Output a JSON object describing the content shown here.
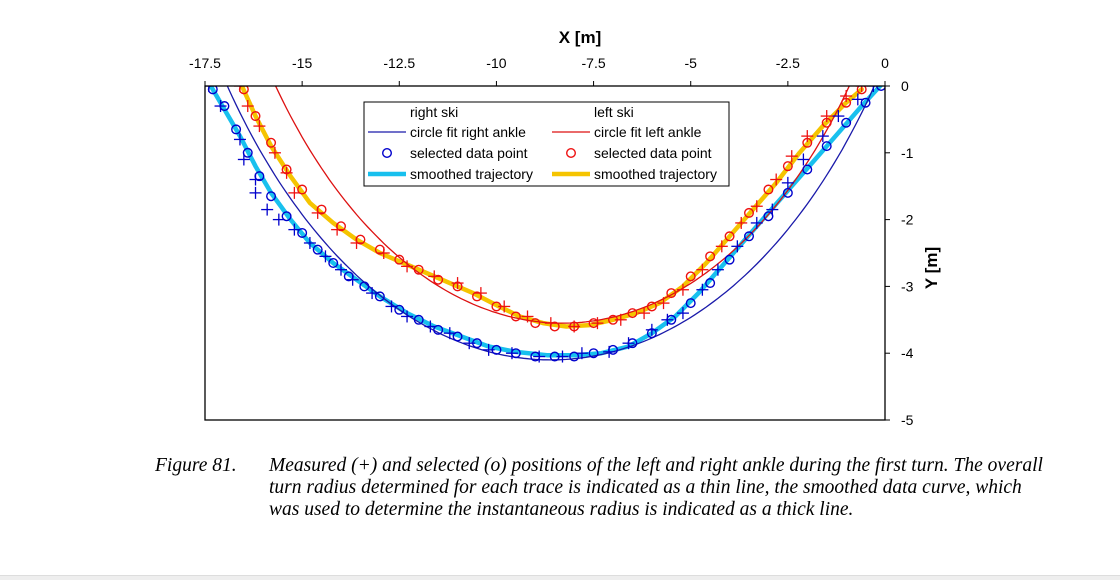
{
  "chart_data": {
    "type": "scatter",
    "title": "",
    "xlabel": "X [m]",
    "ylabel": "Y [m]",
    "xlim": [
      -17.5,
      0
    ],
    "ylim": [
      -5,
      0
    ],
    "x_ticks": [
      "-17.5",
      "-15",
      "-12.5",
      "-10",
      "-7.5",
      "-5",
      "-2.5",
      "0"
    ],
    "x_tick_values": [
      -17.5,
      -15,
      -12.5,
      -10,
      -7.5,
      -5,
      -2.5,
      0
    ],
    "y_ticks": [
      "0",
      "-1",
      "-2",
      "-3",
      "-4",
      "-5"
    ],
    "y_tick_values": [
      0,
      -1,
      -2,
      -3,
      -4,
      -5
    ],
    "grid": false,
    "x_axis_position": "top",
    "y_axis_position": "right",
    "legend_position": "top-center",
    "legend": {
      "right": {
        "header": "right ski",
        "fit": "circle fit right ankle",
        "selected": "selected data point",
        "smoothed": "smoothed trajectory"
      },
      "left": {
        "header": "left ski",
        "fit": "circle fit left ankle",
        "selected": "selected data point",
        "smoothed": "smoothed trajectory"
      }
    },
    "colors": {
      "right_marker": "#0000cc",
      "right_fit": "#1a1aaa",
      "right_smoothed": "#18c0ee",
      "left_marker": "#ee1111",
      "left_fit": "#dd1111",
      "left_smoothed": "#f5c400"
    },
    "series": [
      {
        "name": "right ski",
        "kind": "measured",
        "marker": "plus",
        "points": [
          [
            -17.4,
            0
          ],
          [
            -17.1,
            -0.3
          ],
          [
            -16.6,
            -0.8
          ],
          [
            -16.5,
            -1.1
          ],
          [
            -16.2,
            -1.4
          ],
          [
            -16.2,
            -1.6
          ],
          [
            -15.9,
            -1.85
          ],
          [
            -15.6,
            -2.0
          ],
          [
            -15.2,
            -2.15
          ],
          [
            -14.8,
            -2.35
          ],
          [
            -14.4,
            -2.55
          ],
          [
            -14.0,
            -2.75
          ],
          [
            -13.7,
            -2.9
          ],
          [
            -13.2,
            -3.1
          ],
          [
            -12.7,
            -3.3
          ],
          [
            -12.3,
            -3.45
          ],
          [
            -11.7,
            -3.6
          ],
          [
            -11.2,
            -3.7
          ],
          [
            -10.7,
            -3.85
          ],
          [
            -10.2,
            -3.95
          ],
          [
            -9.6,
            -4.0
          ],
          [
            -8.9,
            -4.05
          ],
          [
            -8.3,
            -4.05
          ],
          [
            -7.8,
            -4.0
          ],
          [
            -7.1,
            -3.98
          ],
          [
            -6.6,
            -3.85
          ],
          [
            -6.0,
            -3.65
          ],
          [
            -5.6,
            -3.5
          ],
          [
            -5.2,
            -3.4
          ],
          [
            -4.7,
            -3.05
          ],
          [
            -4.3,
            -2.75
          ],
          [
            -3.8,
            -2.4
          ],
          [
            -3.3,
            -2.05
          ],
          [
            -2.9,
            -1.85
          ],
          [
            -2.5,
            -1.45
          ],
          [
            -2.1,
            -1.1
          ],
          [
            -1.6,
            -0.75
          ],
          [
            -1.2,
            -0.45
          ],
          [
            -0.7,
            -0.2
          ],
          [
            -0.3,
            0
          ]
        ]
      },
      {
        "name": "right ski",
        "kind": "selected",
        "marker": "circle",
        "points": [
          [
            -17.3,
            -0.05
          ],
          [
            -17.0,
            -0.3
          ],
          [
            -16.7,
            -0.65
          ],
          [
            -16.4,
            -1.0
          ],
          [
            -16.1,
            -1.35
          ],
          [
            -15.8,
            -1.65
          ],
          [
            -15.4,
            -1.95
          ],
          [
            -15.0,
            -2.2
          ],
          [
            -14.6,
            -2.45
          ],
          [
            -14.2,
            -2.65
          ],
          [
            -13.8,
            -2.85
          ],
          [
            -13.4,
            -3.0
          ],
          [
            -13.0,
            -3.15
          ],
          [
            -12.5,
            -3.35
          ],
          [
            -12.0,
            -3.5
          ],
          [
            -11.5,
            -3.65
          ],
          [
            -11.0,
            -3.75
          ],
          [
            -10.5,
            -3.85
          ],
          [
            -10.0,
            -3.95
          ],
          [
            -9.5,
            -4.0
          ],
          [
            -9.0,
            -4.05
          ],
          [
            -8.5,
            -4.05
          ],
          [
            -8.0,
            -4.05
          ],
          [
            -7.5,
            -4.0
          ],
          [
            -7.0,
            -3.95
          ],
          [
            -6.5,
            -3.85
          ],
          [
            -6.0,
            -3.7
          ],
          [
            -5.5,
            -3.5
          ],
          [
            -5.0,
            -3.25
          ],
          [
            -4.5,
            -2.95
          ],
          [
            -4.0,
            -2.6
          ],
          [
            -3.5,
            -2.25
          ],
          [
            -3.0,
            -1.95
          ],
          [
            -2.5,
            -1.6
          ],
          [
            -2.0,
            -1.25
          ],
          [
            -1.5,
            -0.9
          ],
          [
            -1.0,
            -0.55
          ],
          [
            -0.5,
            -0.25
          ],
          [
            -0.1,
            0
          ]
        ]
      },
      {
        "name": "left ski",
        "kind": "measured",
        "marker": "plus",
        "points": [
          [
            -16.6,
            0
          ],
          [
            -16.4,
            -0.3
          ],
          [
            -16.1,
            -0.6
          ],
          [
            -15.7,
            -1.0
          ],
          [
            -15.4,
            -1.3
          ],
          [
            -15.2,
            -1.6
          ],
          [
            -14.6,
            -1.9
          ],
          [
            -14.1,
            -2.15
          ],
          [
            -13.6,
            -2.35
          ],
          [
            -12.9,
            -2.5
          ],
          [
            -12.3,
            -2.7
          ],
          [
            -11.6,
            -2.85
          ],
          [
            -11.0,
            -2.95
          ],
          [
            -10.4,
            -3.1
          ],
          [
            -9.8,
            -3.3
          ],
          [
            -9.2,
            -3.45
          ],
          [
            -8.6,
            -3.55
          ],
          [
            -8.0,
            -3.6
          ],
          [
            -7.4,
            -3.55
          ],
          [
            -6.8,
            -3.5
          ],
          [
            -6.2,
            -3.4
          ],
          [
            -5.7,
            -3.25
          ],
          [
            -5.2,
            -3.05
          ],
          [
            -4.7,
            -2.75
          ],
          [
            -4.2,
            -2.4
          ],
          [
            -3.7,
            -2.05
          ],
          [
            -3.3,
            -1.8
          ],
          [
            -2.8,
            -1.4
          ],
          [
            -2.4,
            -1.05
          ],
          [
            -2.0,
            -0.75
          ],
          [
            -1.5,
            -0.45
          ],
          [
            -1.0,
            -0.15
          ],
          [
            -0.6,
            0
          ]
        ]
      },
      {
        "name": "left ski",
        "kind": "selected",
        "marker": "circle",
        "points": [
          [
            -16.5,
            -0.05
          ],
          [
            -16.2,
            -0.45
          ],
          [
            -15.8,
            -0.85
          ],
          [
            -15.4,
            -1.25
          ],
          [
            -15.0,
            -1.55
          ],
          [
            -14.5,
            -1.85
          ],
          [
            -14.0,
            -2.1
          ],
          [
            -13.5,
            -2.3
          ],
          [
            -13.0,
            -2.45
          ],
          [
            -12.5,
            -2.6
          ],
          [
            -12.0,
            -2.75
          ],
          [
            -11.5,
            -2.9
          ],
          [
            -11.0,
            -3.0
          ],
          [
            -10.5,
            -3.15
          ],
          [
            -10.0,
            -3.3
          ],
          [
            -9.5,
            -3.45
          ],
          [
            -9.0,
            -3.55
          ],
          [
            -8.5,
            -3.6
          ],
          [
            -8.0,
            -3.6
          ],
          [
            -7.5,
            -3.55
          ],
          [
            -7.0,
            -3.5
          ],
          [
            -6.5,
            -3.4
          ],
          [
            -6.0,
            -3.3
          ],
          [
            -5.5,
            -3.1
          ],
          [
            -5.0,
            -2.85
          ],
          [
            -4.5,
            -2.55
          ],
          [
            -4.0,
            -2.25
          ],
          [
            -3.5,
            -1.9
          ],
          [
            -3.0,
            -1.55
          ],
          [
            -2.5,
            -1.2
          ],
          [
            -2.0,
            -0.85
          ],
          [
            -1.5,
            -0.55
          ],
          [
            -1.0,
            -0.25
          ],
          [
            -0.6,
            -0.05
          ]
        ]
      }
    ],
    "circle_fits": [
      {
        "name": "circle fit right ankle",
        "center": [
          -8.6,
          6.4
        ],
        "radius": 10.5,
        "x_range": [
          -17.3,
          -0.1
        ]
      },
      {
        "name": "circle fit left ankle",
        "center": [
          -8.3,
          5.9
        ],
        "radius": 9.45,
        "x_range": [
          -16.7,
          -0.6
        ]
      }
    ],
    "smoothed": [
      {
        "name": "smoothed trajectory",
        "ski": "right",
        "points": [
          [
            -17.35,
            0
          ],
          [
            -17.0,
            -0.35
          ],
          [
            -16.6,
            -0.75
          ],
          [
            -16.2,
            -1.2
          ],
          [
            -15.8,
            -1.6
          ],
          [
            -15.3,
            -2.0
          ],
          [
            -14.8,
            -2.35
          ],
          [
            -14.2,
            -2.65
          ],
          [
            -13.6,
            -2.9
          ],
          [
            -13.0,
            -3.15
          ],
          [
            -12.3,
            -3.4
          ],
          [
            -11.6,
            -3.6
          ],
          [
            -10.9,
            -3.75
          ],
          [
            -10.2,
            -3.9
          ],
          [
            -9.5,
            -3.98
          ],
          [
            -8.7,
            -4.03
          ],
          [
            -8.0,
            -4.03
          ],
          [
            -7.3,
            -4.0
          ],
          [
            -6.6,
            -3.9
          ],
          [
            -6.0,
            -3.7
          ],
          [
            -5.4,
            -3.45
          ],
          [
            -4.8,
            -3.1
          ],
          [
            -4.2,
            -2.7
          ],
          [
            -3.6,
            -2.3
          ],
          [
            -3.0,
            -1.9
          ],
          [
            -2.4,
            -1.5
          ],
          [
            -1.8,
            -1.1
          ],
          [
            -1.2,
            -0.7
          ],
          [
            -0.6,
            -0.3
          ],
          [
            -0.05,
            0.05
          ]
        ]
      },
      {
        "name": "smoothed trajectory",
        "ski": "left",
        "points": [
          [
            -16.55,
            0
          ],
          [
            -16.2,
            -0.45
          ],
          [
            -15.8,
            -0.9
          ],
          [
            -15.3,
            -1.35
          ],
          [
            -14.8,
            -1.75
          ],
          [
            -14.2,
            -2.05
          ],
          [
            -13.6,
            -2.3
          ],
          [
            -13.0,
            -2.5
          ],
          [
            -12.4,
            -2.65
          ],
          [
            -11.8,
            -2.8
          ],
          [
            -11.2,
            -2.95
          ],
          [
            -10.6,
            -3.1
          ],
          [
            -10.0,
            -3.28
          ],
          [
            -9.4,
            -3.45
          ],
          [
            -8.8,
            -3.55
          ],
          [
            -8.2,
            -3.6
          ],
          [
            -7.6,
            -3.58
          ],
          [
            -7.0,
            -3.5
          ],
          [
            -6.4,
            -3.4
          ],
          [
            -5.8,
            -3.25
          ],
          [
            -5.2,
            -3.0
          ],
          [
            -4.6,
            -2.65
          ],
          [
            -4.0,
            -2.25
          ],
          [
            -3.4,
            -1.85
          ],
          [
            -2.8,
            -1.45
          ],
          [
            -2.2,
            -1.0
          ],
          [
            -1.6,
            -0.6
          ],
          [
            -1.0,
            -0.25
          ],
          [
            -0.6,
            -0.05
          ]
        ]
      }
    ]
  },
  "caption": {
    "label": "Figure 81.",
    "text": "Measured (+) and selected (o) positions of the left and right ankle during the first turn. The overall turn radius determined for each trace is indicated as a thin line, the smoothed data curve, which was used to determine the instantaneous radius is indicated as a thick line."
  }
}
